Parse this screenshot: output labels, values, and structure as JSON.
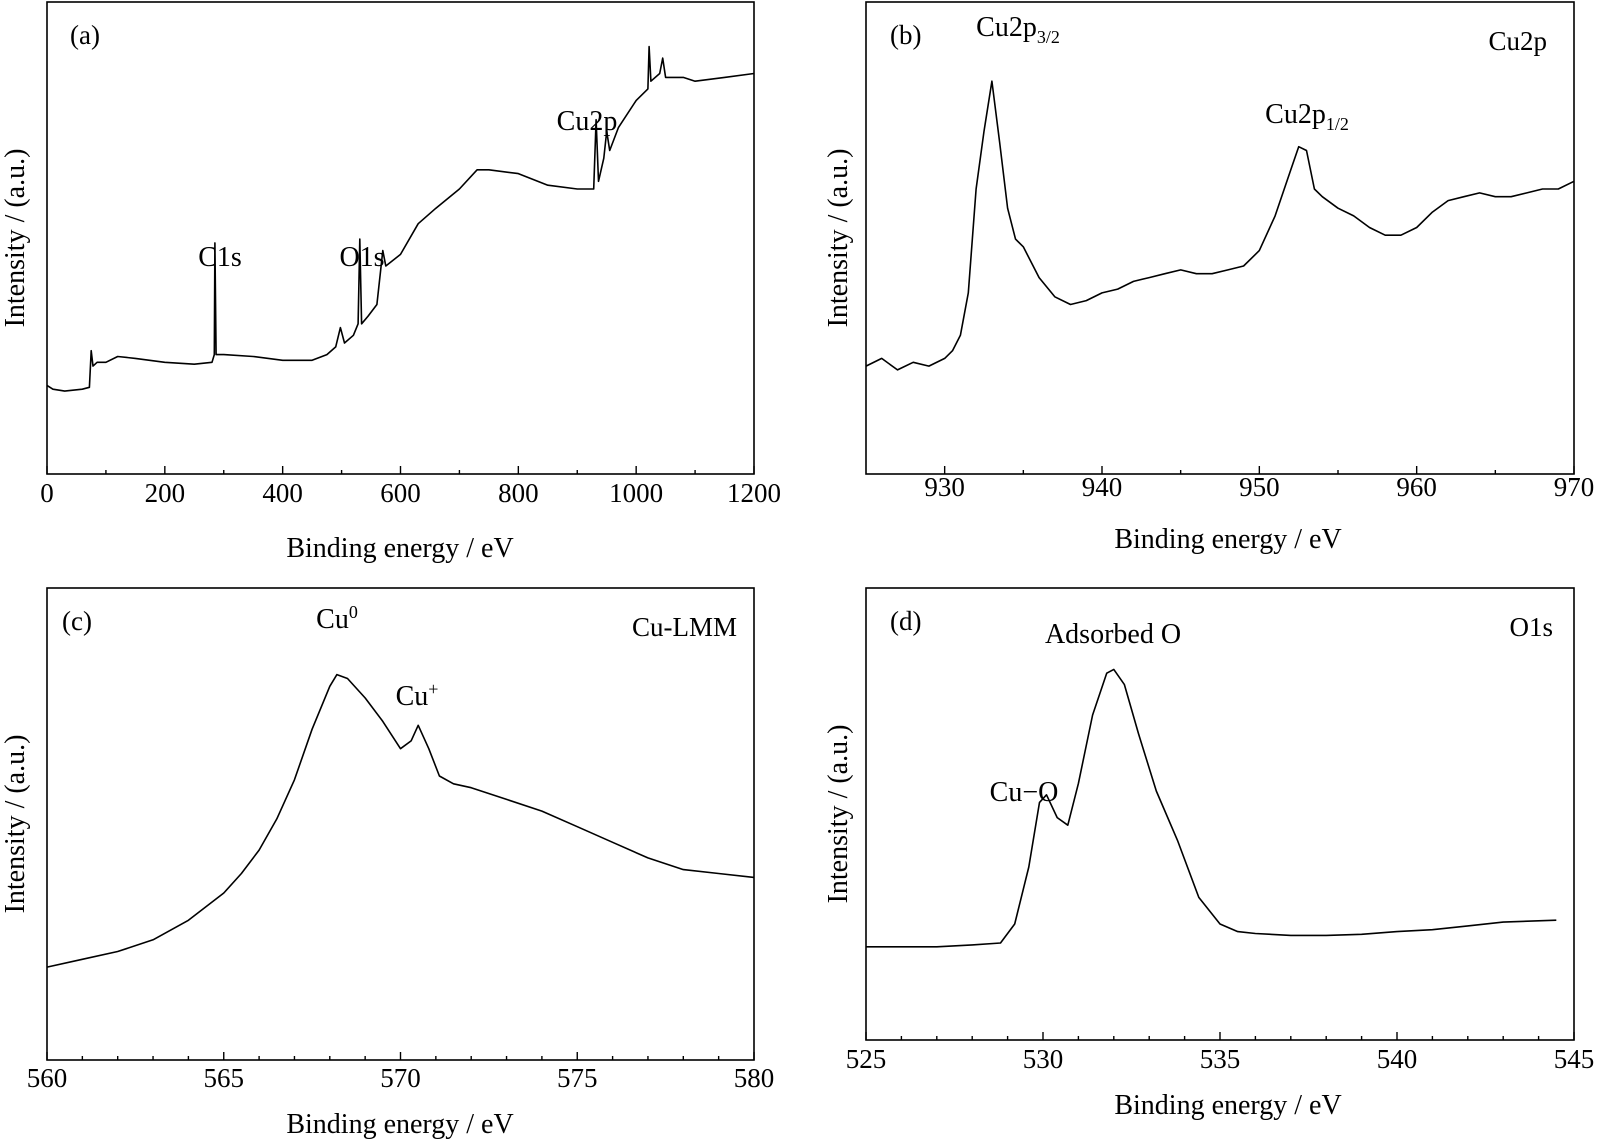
{
  "chart_data": [
    {
      "type": "line",
      "panel_label": "(a)",
      "title": "",
      "xlabel": "Binding energy / eV",
      "ylabel": "Intensity / (a.u.)",
      "xlim": [
        0,
        1200
      ],
      "ylim": [
        0,
        100
      ],
      "x_ticks": [
        0,
        200,
        400,
        600,
        800,
        1000,
        1200
      ],
      "x_tick_labels": [
        "0",
        "200",
        "400",
        "600",
        "800",
        "1000",
        "1200"
      ],
      "minor_ticks_per_interval": 1,
      "y_ticks_shown": false,
      "annotations": [
        {
          "text": "C1s",
          "x": 285,
          "y": 47
        },
        {
          "text": "O1s",
          "x": 531,
          "y": 47
        },
        {
          "text": "Cu2p",
          "x": 932,
          "y": 78
        }
      ],
      "series": [
        {
          "points": [
            [
              0,
              9
            ],
            [
              10,
              8
            ],
            [
              30,
              7.5
            ],
            [
              60,
              8
            ],
            [
              72,
              8.5
            ],
            [
              75,
              18
            ],
            [
              78,
              14
            ],
            [
              85,
              15
            ],
            [
              100,
              15
            ],
            [
              120,
              16.5
            ],
            [
              150,
              16
            ],
            [
              200,
              15
            ],
            [
              250,
              14.5
            ],
            [
              280,
              15
            ],
            [
              284,
              17
            ],
            [
              285,
              46
            ],
            [
              287,
              17
            ],
            [
              300,
              17
            ],
            [
              350,
              16.5
            ],
            [
              400,
              15.5
            ],
            [
              450,
              15.5
            ],
            [
              475,
              17
            ],
            [
              490,
              19
            ],
            [
              498,
              24
            ],
            [
              505,
              20
            ],
            [
              520,
              22
            ],
            [
              528,
              25
            ],
            [
              531,
              47
            ],
            [
              534,
              25
            ],
            [
              545,
              27
            ],
            [
              560,
              30
            ],
            [
              570,
              44
            ],
            [
              575,
              40
            ],
            [
              600,
              43
            ],
            [
              630,
              51
            ],
            [
              660,
              55
            ],
            [
              700,
              60
            ],
            [
              730,
              65
            ],
            [
              750,
              65
            ],
            [
              800,
              64
            ],
            [
              850,
              61
            ],
            [
              900,
              60
            ],
            [
              928,
              60
            ],
            [
              932,
              78
            ],
            [
              936,
              62
            ],
            [
              945,
              68
            ],
            [
              950,
              75
            ],
            [
              955,
              70
            ],
            [
              970,
              76
            ],
            [
              1000,
              83
            ],
            [
              1020,
              86
            ],
            [
              1022,
              97
            ],
            [
              1025,
              88
            ],
            [
              1040,
              90
            ],
            [
              1045,
              94
            ],
            [
              1050,
              89
            ],
            [
              1080,
              89
            ],
            [
              1100,
              88
            ],
            [
              1150,
              89
            ],
            [
              1200,
              90
            ]
          ]
        }
      ]
    },
    {
      "type": "line",
      "panel_label": "(b)",
      "element_label": "Cu2p",
      "title": "",
      "xlabel": "Binding energy / eV",
      "ylabel": "Intensity / (a.u.)",
      "xlim": [
        925,
        970
      ],
      "ylim": [
        0,
        100
      ],
      "x_ticks": [
        930,
        940,
        950,
        960,
        970
      ],
      "x_tick_labels": [
        "930",
        "940",
        "950",
        "960",
        "970"
      ],
      "minor_ticks_per_interval": 1,
      "y_ticks_shown": false,
      "annotations": [
        {
          "text": "Cu2p",
          "sub": "3/2",
          "x": 933,
          "y": 95
        },
        {
          "text": "Cu2p",
          "sub": "1/2",
          "x": 952.5,
          "y": 73
        }
      ],
      "series": [
        {
          "points": [
            [
              925,
              14
            ],
            [
              926,
              16
            ],
            [
              927,
              13
            ],
            [
              928,
              15
            ],
            [
              929,
              14
            ],
            [
              930,
              16
            ],
            [
              930.5,
              18
            ],
            [
              931,
              22
            ],
            [
              931.5,
              33
            ],
            [
              932,
              60
            ],
            [
              932.5,
              75
            ],
            [
              933,
              88
            ],
            [
              933.5,
              72
            ],
            [
              934,
              55
            ],
            [
              934.5,
              47
            ],
            [
              935,
              45
            ],
            [
              936,
              37
            ],
            [
              937,
              32
            ],
            [
              938,
              30
            ],
            [
              939,
              31
            ],
            [
              940,
              33
            ],
            [
              941,
              34
            ],
            [
              942,
              36
            ],
            [
              943,
              37
            ],
            [
              944,
              38
            ],
            [
              945,
              39
            ],
            [
              946,
              38
            ],
            [
              947,
              38
            ],
            [
              948,
              39
            ],
            [
              949,
              40
            ],
            [
              950,
              44
            ],
            [
              951,
              53
            ],
            [
              952,
              65
            ],
            [
              952.5,
              71
            ],
            [
              953,
              70
            ],
            [
              953.5,
              60
            ],
            [
              954,
              58
            ],
            [
              955,
              55
            ],
            [
              956,
              53
            ],
            [
              957,
              50
            ],
            [
              958,
              48
            ],
            [
              959,
              48
            ],
            [
              960,
              50
            ],
            [
              961,
              54
            ],
            [
              962,
              57
            ],
            [
              963,
              58
            ],
            [
              964,
              59
            ],
            [
              965,
              58
            ],
            [
              966,
              58
            ],
            [
              967,
              59
            ],
            [
              968,
              60
            ],
            [
              969,
              60
            ],
            [
              970,
              62
            ]
          ]
        }
      ]
    },
    {
      "type": "line",
      "panel_label": "(c)",
      "element_label": "Cu-LMM",
      "title": "",
      "xlabel": "Binding energy / eV",
      "ylabel": "Intensity / (a.u.)",
      "xlim": [
        560,
        580
      ],
      "ylim": [
        0,
        100
      ],
      "x_ticks": [
        560,
        565,
        570,
        575,
        580
      ],
      "x_tick_labels": [
        "560",
        "565",
        "570",
        "575",
        "580"
      ],
      "minor_ticks_per_interval": 4,
      "y_ticks_shown": false,
      "annotations": [
        {
          "text": "Cu",
          "sup": "0",
          "x": 568.2,
          "y": 93
        },
        {
          "text": "Cu",
          "sup": "+",
          "x": 570.5,
          "y": 79
        }
      ],
      "series": [
        {
          "points": [
            [
              560,
              11
            ],
            [
              561,
              13
            ],
            [
              562,
              15
            ],
            [
              563,
              18
            ],
            [
              564,
              23
            ],
            [
              565,
              30
            ],
            [
              565.5,
              35
            ],
            [
              566,
              41
            ],
            [
              566.5,
              49
            ],
            [
              567,
              59
            ],
            [
              567.5,
              72
            ],
            [
              568,
              83
            ],
            [
              568.2,
              86
            ],
            [
              568.5,
              85
            ],
            [
              569,
              80
            ],
            [
              569.5,
              74
            ],
            [
              570,
              67
            ],
            [
              570.3,
              69
            ],
            [
              570.5,
              73
            ],
            [
              570.8,
              67
            ],
            [
              571.1,
              60
            ],
            [
              571.5,
              58
            ],
            [
              572,
              57
            ],
            [
              573,
              54
            ],
            [
              574,
              51
            ],
            [
              575,
              47
            ],
            [
              576,
              43
            ],
            [
              577,
              39
            ],
            [
              578,
              36
            ],
            [
              579,
              35
            ],
            [
              580,
              34
            ]
          ]
        }
      ]
    },
    {
      "type": "line",
      "panel_label": "(d)",
      "element_label": "O1s",
      "title": "",
      "xlabel": "Binding energy / eV",
      "ylabel": "Intensity / (a.u.)",
      "xlim": [
        525,
        545
      ],
      "ylim": [
        0,
        100
      ],
      "x_ticks": [
        525,
        530,
        535,
        540,
        545
      ],
      "x_tick_labels": [
        "525",
        "530",
        "535",
        "540",
        "545"
      ],
      "minor_ticks_per_interval": 4,
      "y_ticks_shown": false,
      "annotations": [
        {
          "text": "Adsorbed O",
          "x": 532,
          "y": 89
        },
        {
          "text": "Cu−O",
          "x": 530,
          "y": 59
        }
      ],
      "series": [
        {
          "points": [
            [
              525,
              14
            ],
            [
              526,
              14
            ],
            [
              527,
              14
            ],
            [
              528,
              14.5
            ],
            [
              528.8,
              15
            ],
            [
              529.2,
              20
            ],
            [
              529.6,
              35
            ],
            [
              529.9,
              52
            ],
            [
              530.1,
              54
            ],
            [
              530.4,
              48
            ],
            [
              530.7,
              46
            ],
            [
              531,
              57
            ],
            [
              531.4,
              75
            ],
            [
              531.8,
              86
            ],
            [
              532,
              87
            ],
            [
              532.3,
              83
            ],
            [
              532.7,
              70
            ],
            [
              533.2,
              55
            ],
            [
              533.8,
              42
            ],
            [
              534.4,
              27
            ],
            [
              535,
              20
            ],
            [
              535.5,
              18
            ],
            [
              536,
              17.5
            ],
            [
              537,
              17
            ],
            [
              538,
              17
            ],
            [
              539,
              17.3
            ],
            [
              540,
              18
            ],
            [
              541,
              18.5
            ],
            [
              542,
              19.5
            ],
            [
              543,
              20.5
            ],
            [
              544.5,
              21
            ]
          ]
        }
      ]
    }
  ]
}
